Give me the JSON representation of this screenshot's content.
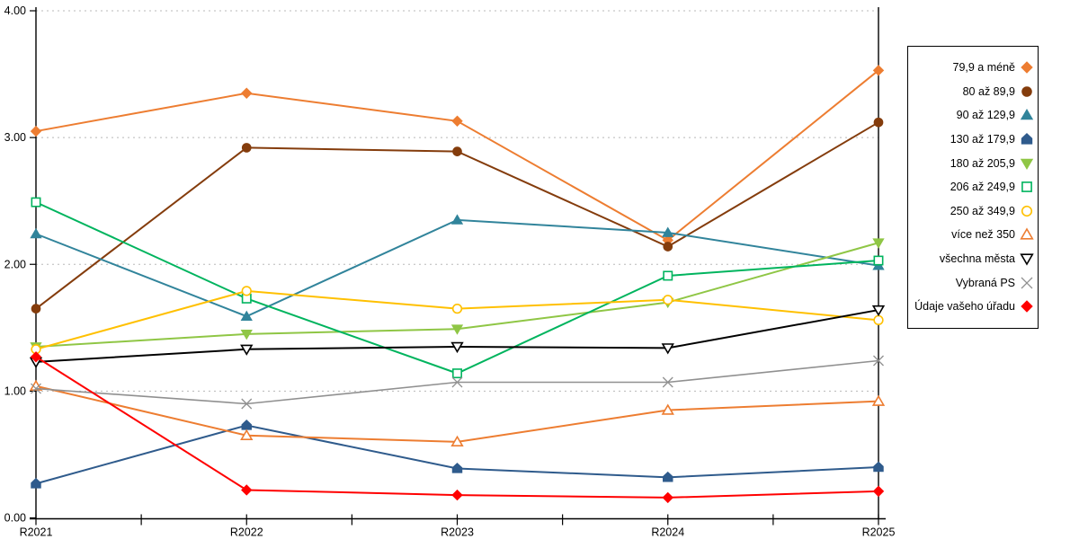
{
  "chart_data": {
    "type": "line",
    "title": "",
    "xlabel": "",
    "ylabel": "",
    "categories": [
      "R2021",
      "R2022",
      "R2023",
      "R2024",
      "R2025"
    ],
    "y_axis": {
      "min": 0,
      "max": 4,
      "tick_labels": [
        "0.00",
        "1.00",
        "2.00",
        "3.00",
        "4.00"
      ]
    },
    "grid": "horizontal-dotted",
    "grid_color": "#B8B8B8",
    "axis_color": "#000000",
    "legend_position": "right",
    "series": [
      {
        "name": "79,9 a méně",
        "marker": "diamond",
        "style": "filled",
        "color": "#ED7D31",
        "values": [
          3.05,
          3.35,
          3.13,
          2.19,
          3.53
        ]
      },
      {
        "name": "80 až 89,9",
        "marker": "circle",
        "style": "filled",
        "color": "#843C0C",
        "values": [
          1.65,
          2.92,
          2.89,
          2.14,
          3.12
        ]
      },
      {
        "name": "90 až 129,9",
        "marker": "triangle",
        "style": "filled",
        "color": "#31849B",
        "values": [
          2.24,
          1.59,
          2.35,
          2.25,
          1.99
        ]
      },
      {
        "name": "130 až 179,9",
        "marker": "pentagon",
        "style": "filled",
        "color": "#2F5B8C",
        "values": [
          0.27,
          0.73,
          0.39,
          0.32,
          0.4
        ]
      },
      {
        "name": "180 až 205,9",
        "marker": "triangle-down",
        "style": "filled",
        "color": "#8FC645",
        "values": [
          1.35,
          1.45,
          1.49,
          1.7,
          2.17
        ]
      },
      {
        "name": "206 až 249,9",
        "marker": "square",
        "style": "open",
        "color": "#00B45E",
        "values": [
          2.49,
          1.73,
          1.14,
          1.91,
          2.03
        ]
      },
      {
        "name": "250 až 349,9",
        "marker": "circle",
        "style": "open",
        "color": "#FFC000",
        "values": [
          1.33,
          1.79,
          1.65,
          1.72,
          1.56
        ]
      },
      {
        "name": "více než 350",
        "marker": "triangle",
        "style": "open",
        "color": "#ED7D31",
        "values": [
          1.04,
          0.65,
          0.6,
          0.85,
          0.92
        ]
      },
      {
        "name": "všechna města",
        "marker": "triangle-down",
        "style": "open",
        "color": "#000000",
        "values": [
          1.23,
          1.33,
          1.35,
          1.34,
          1.64
        ]
      },
      {
        "name": "Vybraná PS",
        "marker": "x",
        "style": "line",
        "color": "#909090",
        "values": [
          1.02,
          0.9,
          1.07,
          1.07,
          1.24
        ]
      },
      {
        "name": "Údaje vašeho úřadu",
        "marker": "diamond",
        "style": "filled",
        "color": "#FF0000",
        "values": [
          1.27,
          0.22,
          0.18,
          0.16,
          0.21
        ]
      }
    ]
  }
}
